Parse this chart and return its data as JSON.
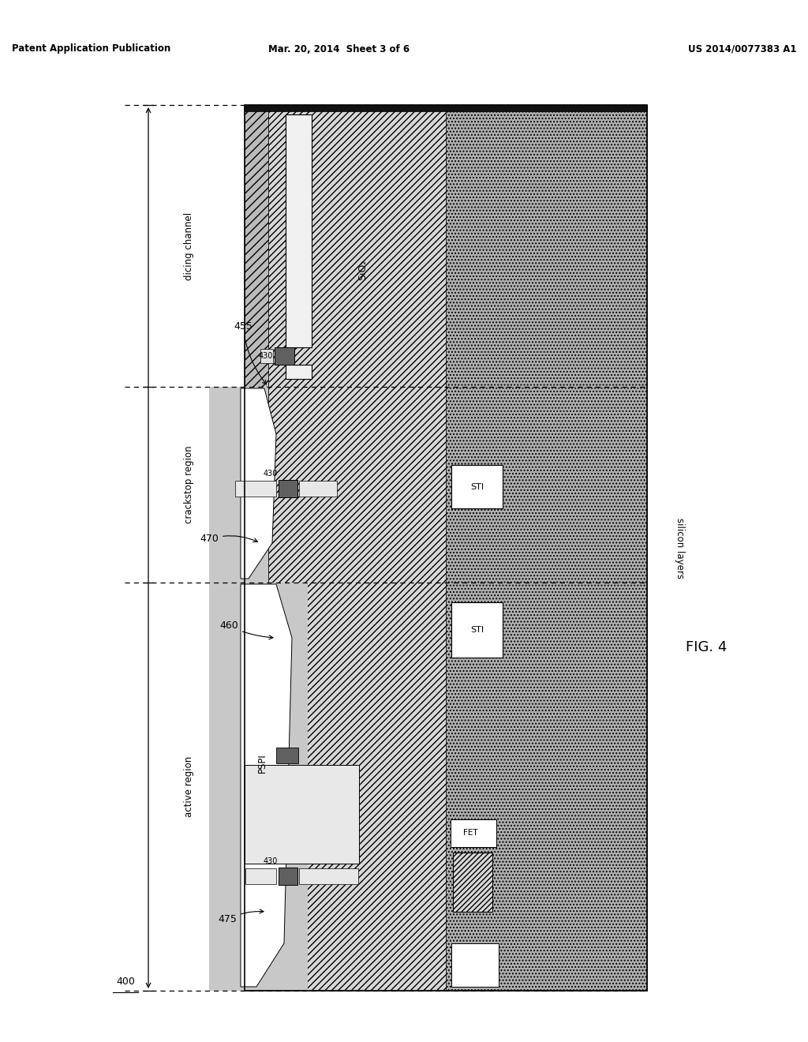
{
  "title_left": "Patent Application Publication",
  "title_mid": "Mar. 20, 2014  Sheet 3 of 6",
  "title_right": "US 2014/0077383 A1",
  "fig_label": "FIG. 4",
  "ref_400": "400",
  "ref_430": "430",
  "ref_455": "455",
  "ref_460": "460",
  "ref_470": "470",
  "ref_475": "475",
  "label_dicing": "dicing channel",
  "label_crackstop": "crackstop region",
  "label_active": "active region",
  "label_SiO2": "SiO₂",
  "label_PSPI": "PSPI",
  "label_STI": "STI",
  "label_FET": "FET",
  "label_silicon": "silicon layers",
  "bg_color": "#ffffff",
  "color_dark_stipple": "#b0b0b0",
  "color_hatch_diag": "#d8d8d8",
  "color_border_left": "#c8c8c8",
  "color_pspi_fill": "#c8c8c8",
  "color_dark_sq": "#606060",
  "color_metal_rect": "#e0e0e0",
  "color_light_rect": "#e8e8e8"
}
